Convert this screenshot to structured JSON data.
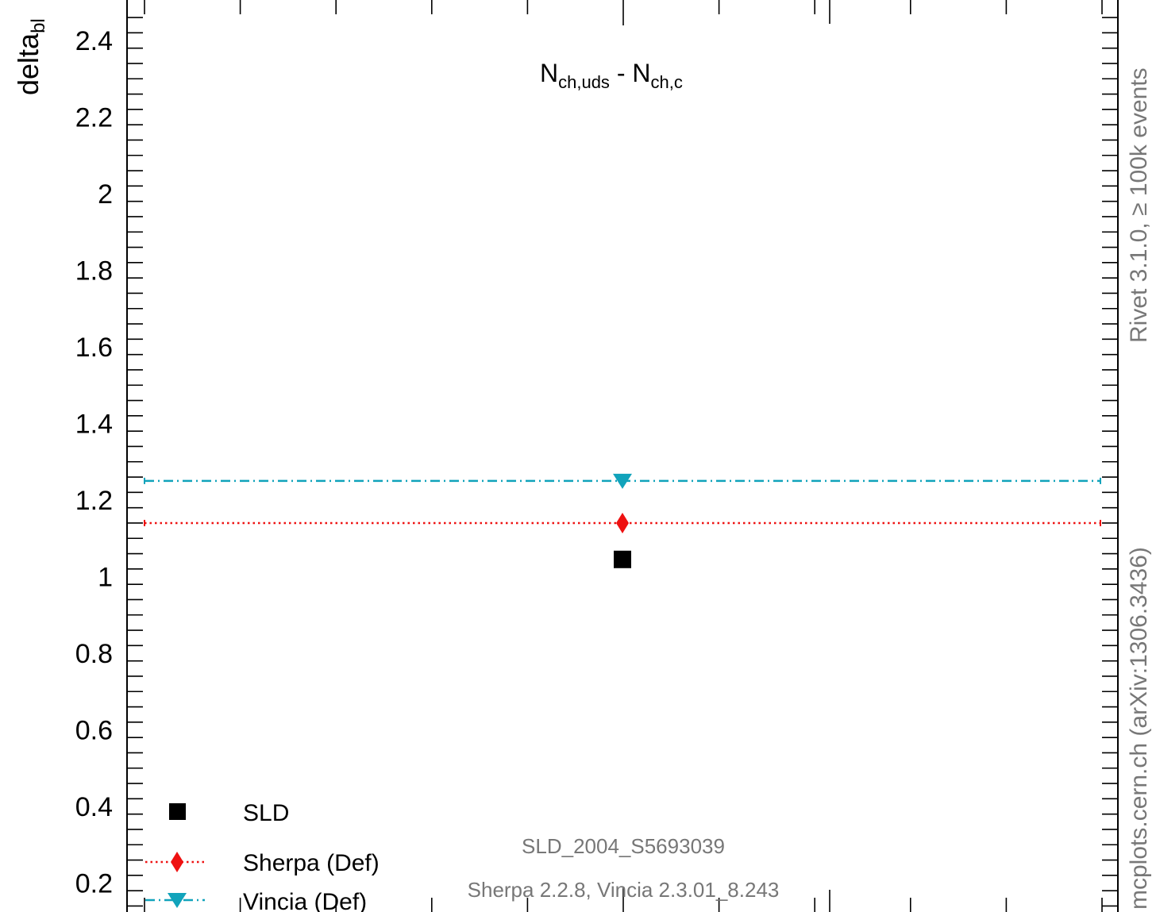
{
  "chart_data": {
    "type": "scatter",
    "title": "",
    "ylabel": {
      "main": "delta",
      "sub": "bl"
    },
    "xlabel": "",
    "annotation": {
      "main1": "N",
      "sub1": "ch,uds",
      "mid": " - ",
      "main2": "N",
      "sub2": "ch,c"
    },
    "ylim": [
      0.13,
      2.48
    ],
    "y_ticks": [
      {
        "value": 0.2,
        "label": "0.2"
      },
      {
        "value": 0.4,
        "label": "0.4"
      },
      {
        "value": 0.6,
        "label": "0.6"
      },
      {
        "value": 0.8,
        "label": "0.8"
      },
      {
        "value": 1.0,
        "label": "1"
      },
      {
        "value": 1.2,
        "label": "1.2"
      },
      {
        "value": 1.4,
        "label": "1.4"
      },
      {
        "value": 1.6,
        "label": "1.6"
      },
      {
        "value": 1.8,
        "label": "1.8"
      },
      {
        "value": 2.0,
        "label": "2"
      },
      {
        "value": 2.2,
        "label": "2.2"
      },
      {
        "value": 2.4,
        "label": "2.4"
      }
    ],
    "series": [
      {
        "name": "SLD",
        "marker": "square",
        "line": "none",
        "color": "#000000",
        "value": 1.045
      },
      {
        "name": "Sherpa (Def)",
        "marker": "diamond",
        "line": "dotted",
        "color": "#ee1111",
        "value": 1.14
      },
      {
        "name": "Vincia (Def)",
        "marker": "triangle-down",
        "line": "dashdot",
        "color": "#11a3bb",
        "value": 1.25
      }
    ],
    "grid": false,
    "legend_position": "bottom-left"
  },
  "labels": {
    "analysis": "SLD_2004_S5693039",
    "generators": "Sherpa 2.2.8, Vincia 2.3.01_8.243",
    "right_top": "Rivet 3.1.0, ≥ 100k events",
    "right_bottom": "mcplots.cern.ch (arXiv:1306.3436)"
  },
  "colors": {
    "frame": "#000000",
    "gray_text": "#777777"
  }
}
